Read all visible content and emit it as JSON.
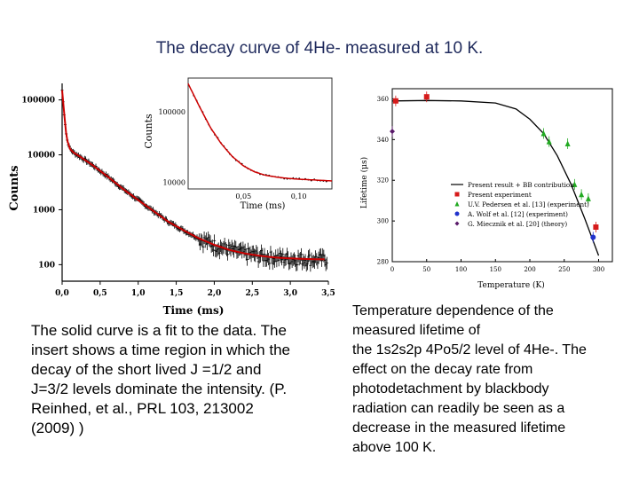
{
  "slide": {
    "title": "The decay curve of 4He- measured at 10 K."
  },
  "captions": {
    "left": "The solid curve is a fit to the data. The insert shows a time region in which the decay of the short lived J =1/2 and J=3/2 levels dominate the intensity. (P. Reinhed, et al., PRL 103, 213002 (2009) )",
    "right_lines": [
      " Temperature dependence of the",
      "measured lifetime of",
      " the 1s2s2p 4Po5/2 level of 4He-. The",
      "effect on the decay rate from",
      "photodetachment by blackbody",
      "radiation can readily be seen as a",
      "decrease in the measured lifetime",
      "above 100 K."
    ]
  },
  "chart_data": [
    {
      "type": "scatter",
      "title": "",
      "xlabel": "Time (ms)",
      "ylabel": "Counts",
      "xlim": [
        0,
        3.5
      ],
      "ylim": [
        50,
        200000
      ],
      "yscale": "log",
      "x_ticks": [
        "0,0",
        "0,5",
        "1,0",
        "1,5",
        "2,0",
        "2,5",
        "3,0",
        "3,5"
      ],
      "y_ticks": [
        "100000",
        "10000",
        "1000",
        "100"
      ],
      "colors": {
        "data": "#000000",
        "fit": "#cc0000"
      },
      "series": [
        {
          "x": [
            0.0,
            0.03,
            0.06,
            0.1,
            0.15,
            0.25,
            0.4,
            0.6,
            0.8,
            1.0,
            1.2,
            1.4,
            1.6,
            1.8,
            2.0,
            2.2,
            2.4,
            2.6,
            2.8,
            3.0,
            3.2,
            3.45
          ],
          "y": [
            150000,
            50000,
            20000,
            13000,
            11000,
            9000,
            6500,
            4000,
            2400,
            1500,
            950,
            600,
            420,
            300,
            230,
            185,
            160,
            145,
            135,
            130,
            127,
            125
          ]
        }
      ],
      "inset": {
        "xlabel": "Time (ms)",
        "ylabel": "Counts",
        "xlim": [
          0,
          0.13
        ],
        "yscale": "log",
        "x_ticks": [
          "0,05",
          "0,10"
        ],
        "y_ticks": [
          "100000",
          "10000"
        ],
        "x": [
          0.0,
          0.01,
          0.02,
          0.03,
          0.04,
          0.05,
          0.06,
          0.07,
          0.08,
          0.09,
          0.1,
          0.11,
          0.12,
          0.13
        ],
        "y": [
          250000,
          120000,
          60000,
          35000,
          23000,
          17000,
          14000,
          12500,
          11800,
          11300,
          11000,
          10800,
          10600,
          10400
        ]
      }
    },
    {
      "type": "scatter",
      "title": "",
      "xlabel": "Temperature (K)",
      "ylabel": "Lifetime (μs)",
      "xlim": [
        0,
        320
      ],
      "ylim": [
        280,
        365
      ],
      "x_ticks": [
        "0",
        "50",
        "100",
        "150",
        "200",
        "250",
        "300"
      ],
      "y_ticks": [
        "280",
        "300",
        "320",
        "340",
        "360"
      ],
      "legend_position": "bottom-right",
      "series": [
        {
          "name": "Present result + BB contribution",
          "type": "line",
          "color": "#000000",
          "x": [
            0,
            50,
            100,
            150,
            180,
            200,
            220,
            240,
            260,
            280,
            290,
            300
          ],
          "y": [
            359,
            359.2,
            359,
            358,
            355,
            350,
            343,
            332,
            318,
            301,
            292,
            283
          ]
        },
        {
          "name": "Present experiment",
          "marker": "square",
          "color": "#d61a1a",
          "x": [
            5,
            50,
            296
          ],
          "y": [
            359,
            361,
            297
          ]
        },
        {
          "name": "U.V. Pedersen et al. [13] (experiment)",
          "marker": "triangle",
          "color": "#22aa22",
          "x": [
            220,
            228,
            255,
            265,
            275,
            285
          ],
          "y": [
            343,
            339,
            338,
            318,
            313,
            311
          ]
        },
        {
          "name": "A. Wolf et al. [12] (experiment)",
          "marker": "circle",
          "color": "#2233cc",
          "x": [
            292
          ],
          "y": [
            292
          ]
        },
        {
          "name": "G. Miecznik et al. [20] (theory)",
          "marker": "diamond",
          "color": "#5a1a6a",
          "x": [
            0
          ],
          "y": [
            344
          ]
        }
      ]
    }
  ]
}
